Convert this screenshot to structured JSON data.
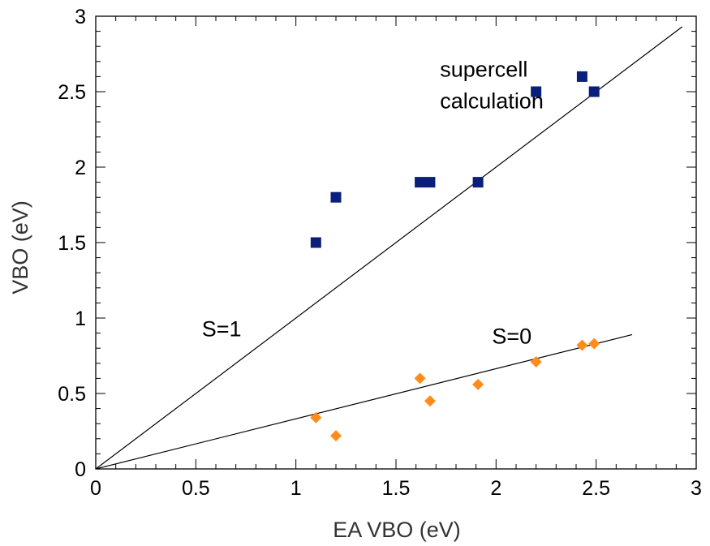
{
  "chart_data": {
    "type": "scatter",
    "title": "",
    "xlabel": "EA VBO (eV)",
    "ylabel": "VBO (eV)",
    "xlim": [
      0,
      3
    ],
    "ylim": [
      0,
      3
    ],
    "x_major_ticks": [
      0,
      0.5,
      1,
      1.5,
      2,
      2.5,
      3
    ],
    "x_tick_labels": [
      "0",
      "0.5",
      "1",
      "1.5",
      "2",
      "2.5",
      "3"
    ],
    "y_major_ticks": [
      0,
      0.5,
      1,
      1.5,
      2,
      2.5,
      3
    ],
    "y_tick_labels": [
      "0",
      "0.5",
      "1",
      "1.5",
      "2",
      "2.5",
      "3"
    ],
    "minor_tick_step": 0.1,
    "grid": false,
    "series": [
      {
        "marker": "square",
        "color": "#0a1f7a",
        "points": [
          {
            "x": 1.1,
            "y": 1.5
          },
          {
            "x": 1.2,
            "y": 1.8
          },
          {
            "x": 1.62,
            "y": 1.9
          },
          {
            "x": 1.67,
            "y": 1.9
          },
          {
            "x": 1.91,
            "y": 1.9
          },
          {
            "x": 2.2,
            "y": 2.5
          },
          {
            "x": 2.43,
            "y": 2.6
          },
          {
            "x": 2.49,
            "y": 2.5
          }
        ]
      },
      {
        "marker": "diamond",
        "color": "#ff8c1a",
        "points": [
          {
            "x": 1.1,
            "y": 0.34
          },
          {
            "x": 1.2,
            "y": 0.22
          },
          {
            "x": 1.62,
            "y": 0.6
          },
          {
            "x": 1.67,
            "y": 0.45
          },
          {
            "x": 1.91,
            "y": 0.56
          },
          {
            "x": 2.2,
            "y": 0.71
          },
          {
            "x": 2.43,
            "y": 0.82
          },
          {
            "x": 2.49,
            "y": 0.83
          }
        ]
      }
    ],
    "lines": [
      {
        "x0": 0,
        "y0": 0,
        "x1": 2.93,
        "y1": 2.93,
        "color": "#000000"
      },
      {
        "x0": 0,
        "y0": 0,
        "x1": 2.68,
        "y1": 0.89,
        "color": "#000000"
      }
    ],
    "annotations": [
      {
        "text": "supercell",
        "x": 1.72,
        "y": 2.6
      },
      {
        "text": "calculation",
        "x": 1.72,
        "y": 2.39
      },
      {
        "text": "S=1",
        "x": 0.53,
        "y": 0.88
      },
      {
        "text": "S=0",
        "x": 1.98,
        "y": 0.83
      }
    ]
  }
}
